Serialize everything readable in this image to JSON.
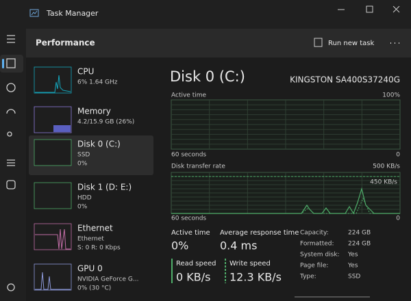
{
  "window": {
    "title": "Task Manager"
  },
  "header": {
    "title": "Performance",
    "action": "Run new task"
  },
  "sidebar": [
    {
      "name": "CPU",
      "lines": [
        "6%  1.64 GHz"
      ]
    },
    {
      "name": "Memory",
      "lines": [
        "4.2/15.9 GB (26%)"
      ]
    },
    {
      "name": "Disk 0 (C:)",
      "lines": [
        "SSD",
        "0%"
      ]
    },
    {
      "name": "Disk 1 (D: E:)",
      "lines": [
        "HDD",
        "0%"
      ]
    },
    {
      "name": "Ethernet",
      "lines": [
        "Ethernet",
        "S: 0 R: 0 Kbps"
      ]
    },
    {
      "name": "GPU 0",
      "lines": [
        "NVIDIA GeForce G...",
        "0% (30 °C)"
      ]
    }
  ],
  "main": {
    "title": "Disk 0 (C:)",
    "model": "KINGSTON SA400S37240G",
    "chart1": {
      "label": "Active time",
      "max": "100%",
      "time": "60 seconds",
      "min": "0"
    },
    "chart2": {
      "label": "Disk transfer rate",
      "max": "500 KB/s",
      "marker": "450 KB/s",
      "time": "60 seconds",
      "min": "0"
    },
    "stats": [
      {
        "label": "Active time",
        "value": "0%"
      },
      {
        "label": "Average response time",
        "value": "0.4 ms"
      },
      {
        "label": "Read speed",
        "value": "0 KB/s"
      },
      {
        "label": "Write speed",
        "value": "12.3 KB/s"
      }
    ],
    "details": [
      {
        "label": "Capacity:",
        "value": "224 GB"
      },
      {
        "label": "Formatted:",
        "value": "224 GB"
      },
      {
        "label": "System disk:",
        "value": "Yes"
      },
      {
        "label": "Page file:",
        "value": "Yes"
      },
      {
        "label": "Type:",
        "value": "SSD"
      }
    ]
  }
}
